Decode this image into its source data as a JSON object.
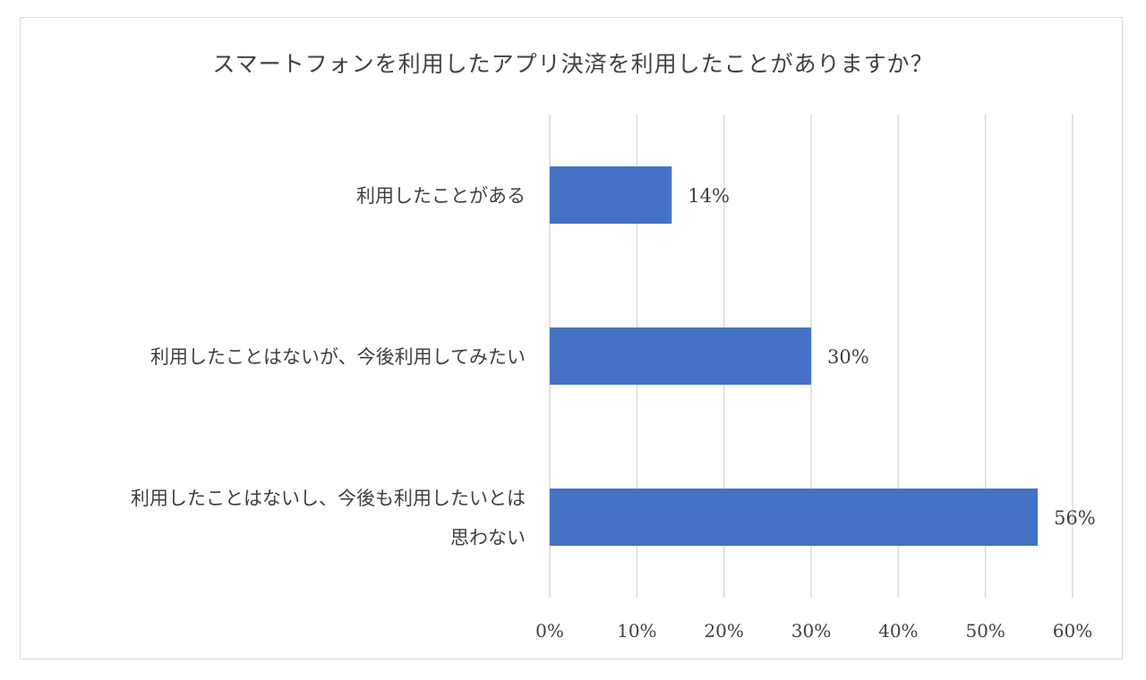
{
  "chart_data": {
    "type": "bar",
    "orientation": "horizontal",
    "title": "スマートフォンを利用したアプリ決済を利用したことがありますか？",
    "categories": [
      [
        "利用したことがある"
      ],
      [
        "利用したことはないが、今後利用してみたい"
      ],
      [
        "利用したことはないし、今後も利用したいとは",
        "思わない"
      ]
    ],
    "values": [
      14,
      30,
      56
    ],
    "data_labels": [
      "14%",
      "30%",
      "56%"
    ],
    "xlim": [
      0,
      60
    ],
    "x_ticks": [
      "0%",
      "10%",
      "20%",
      "30%",
      "40%",
      "50%",
      "60%"
    ],
    "grid": "vertical",
    "bar_color": "#4472C4"
  }
}
